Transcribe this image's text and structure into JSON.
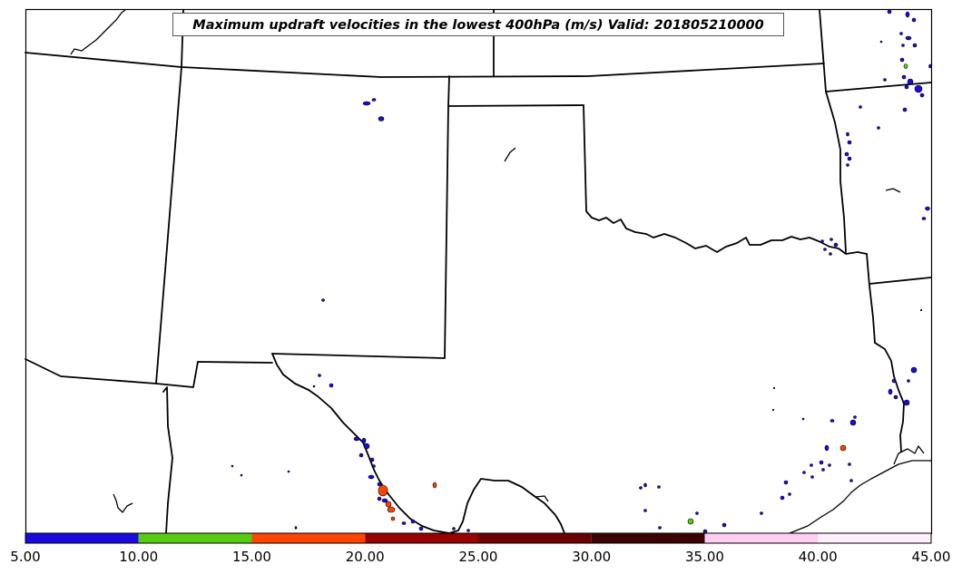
{
  "title": "Maximum updraft velocities in the lowest 400hPa (m/s) Valid: 201805210000",
  "colorbar": {
    "ticks": [
      "5.00",
      "10.00",
      "15.00",
      "20.00",
      "25.00",
      "30.00",
      "35.00",
      "40.00",
      "45.00"
    ],
    "range": [
      5,
      45
    ],
    "bins": [
      {
        "from": 5,
        "to": 10,
        "color": "#1a0adf"
      },
      {
        "from": 10,
        "to": 15,
        "color": "#55cc11"
      },
      {
        "from": 15,
        "to": 20,
        "color": "#ff4400"
      },
      {
        "from": 20,
        "to": 25,
        "color": "#990000"
      },
      {
        "from": 25,
        "to": 30,
        "color": "#6a0000"
      },
      {
        "from": 30,
        "to": 35,
        "color": "#3c0000"
      },
      {
        "from": 35,
        "to": 40,
        "color": "#ffccf2"
      },
      {
        "from": 40,
        "to": 45,
        "color": "#fff0fc"
      }
    ]
  }
}
